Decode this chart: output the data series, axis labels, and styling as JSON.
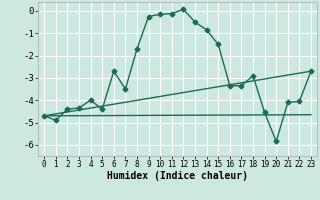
{
  "xlabel": "Humidex (Indice chaleur)",
  "ylabel": "",
  "xlim": [
    -0.5,
    23.5
  ],
  "ylim": [
    -6.5,
    0.4
  ],
  "yticks": [
    0,
    -1,
    -2,
    -3,
    -4,
    -5,
    -6
  ],
  "xticks": [
    0,
    1,
    2,
    3,
    4,
    5,
    6,
    7,
    8,
    9,
    10,
    11,
    12,
    13,
    14,
    15,
    16,
    17,
    18,
    19,
    20,
    21,
    22,
    23
  ],
  "bg_color": "#cce8e0",
  "grid_color": "#ffffff",
  "line_color": "#1a6b5a",
  "main_line": {
    "x": [
      0,
      1,
      2,
      3,
      4,
      5,
      6,
      7,
      8,
      9,
      10,
      11,
      12,
      13,
      14,
      15,
      16,
      17,
      18,
      19,
      20,
      21,
      22,
      23
    ],
    "y": [
      -4.7,
      -4.9,
      -4.4,
      -4.35,
      -4.0,
      -4.4,
      -2.7,
      -3.5,
      -1.7,
      -0.25,
      -0.15,
      -0.12,
      0.07,
      -0.5,
      -0.85,
      -1.5,
      -3.35,
      -3.35,
      -2.9,
      -4.55,
      -5.85,
      -4.1,
      -4.05,
      -2.7
    ]
  },
  "ref_line1": {
    "x": [
      0,
      23
    ],
    "y": [
      -4.7,
      -2.7
    ]
  },
  "ref_line2": {
    "x": [
      0,
      23
    ],
    "y": [
      -4.7,
      -4.65
    ]
  },
  "marker": "D",
  "markersize": 2.5,
  "linewidth": 1.0
}
